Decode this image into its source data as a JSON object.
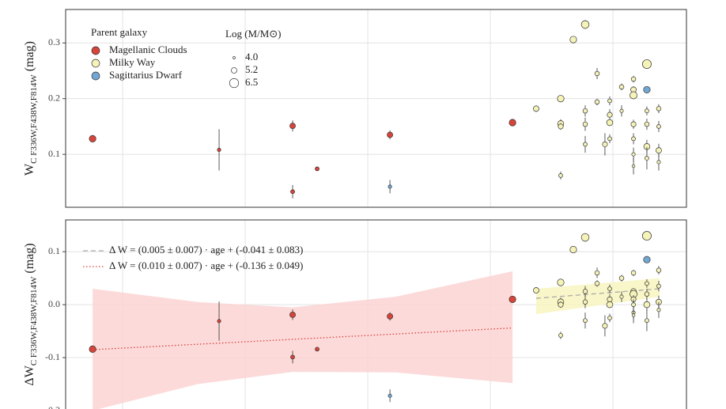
{
  "chart_data": [
    {
      "type": "scatter",
      "ylabel": {
        "main": "W",
        "sub": "C F336W,F438W,F814W",
        "unit": "(mag)"
      },
      "xlim": [
        0.535,
        5.6
      ],
      "xticks": [
        1,
        2,
        3,
        4,
        5
      ],
      "ylim": [
        0.005,
        0.36
      ],
      "yticks": [
        0.1,
        0.2,
        0.3
      ],
      "grid": true,
      "legend_title": "Parent galaxy",
      "size_legend": {
        "title": "Log (M/M⊙)",
        "values": [
          {
            "value": 4,
            "label": "4.0"
          },
          {
            "value": 5.2,
            "label": "5.2"
          },
          {
            "value": 6.5,
            "label": "6.5"
          }
        ]
      },
      "series": [
        {
          "name": "Magellanic Clouds",
          "color": "#d7443a",
          "x": [
            0.755,
            1.787,
            2.387,
            2.387,
            2.587,
            3.181,
            4.181
          ],
          "values": [
            0.128,
            0.108,
            0.151,
            0.033,
            0.074,
            0.135,
            0.157
          ],
          "sizes": [
            5.6,
            4.4,
            5.2,
            4.6,
            4.6,
            5.2,
            5.6
          ],
          "errors": [
            0.006,
            0.037,
            0.01,
            0.012,
            0.003,
            0.008,
            0.005
          ]
        },
        {
          "name": "Milky Way",
          "color": "#f6f3b9",
          "x": [
            4.374,
            4.574,
            4.574,
            4.574,
            4.574,
            4.677,
            4.774,
            4.774,
            4.774,
            4.774,
            4.871,
            4.871,
            4.935,
            4.974,
            4.974,
            4.974,
            4.974,
            5.071,
            5.071,
            5.168,
            5.168,
            5.168,
            5.168,
            5.168,
            5.168,
            5.168,
            5.277,
            5.277,
            5.277,
            5.277,
            5.277,
            5.374,
            5.374,
            5.374,
            5.374
          ],
          "values": [
            0.182,
            0.2,
            0.155,
            0.15,
            0.062,
            0.306,
            0.333,
            0.178,
            0.154,
            0.118,
            0.245,
            0.194,
            0.118,
            0.196,
            0.171,
            0.157,
            0.128,
            0.221,
            0.178,
            0.235,
            0.216,
            0.206,
            0.154,
            0.128,
            0.1,
            0.079,
            0.178,
            0.154,
            0.114,
            0.093,
            0.262,
            0.182,
            0.15,
            0.107,
            0.086
          ],
          "sizes": [
            5.2,
            5.6,
            5.4,
            5.0,
            4.6,
            5.6,
            6.0,
            4.8,
            4.8,
            4.6,
            4.8,
            4.8,
            5.0,
            4.6,
            5.0,
            5.4,
            4.6,
            4.8,
            4.4,
            4.8,
            5.2,
            5.8,
            5.0,
            4.6,
            4.4,
            4.2,
            4.6,
            4.8,
            5.4,
            4.6,
            6.4,
            4.8,
            4.6,
            5.2,
            4.4
          ],
          "errors": [
            0.006,
            0.005,
            0.008,
            0.006,
            0.007,
            0.004,
            0.008,
            0.01,
            0.012,
            0.015,
            0.01,
            0.006,
            0.02,
            0.008,
            0.01,
            0.006,
            0.008,
            0.006,
            0.01,
            0.006,
            0.006,
            0.005,
            0.008,
            0.01,
            0.012,
            0.015,
            0.008,
            0.01,
            0.012,
            0.02,
            0.006,
            0.008,
            0.01,
            0.012,
            0.015
          ]
        },
        {
          "name": "Sagittarius Dwarf",
          "color": "#72a7d3",
          "x": [
            3.181,
            5.277
          ],
          "values": [
            0.042,
            0.216
          ],
          "sizes": [
            4.4,
            5.6
          ],
          "errors": [
            0.012,
            0.005
          ]
        }
      ]
    },
    {
      "type": "scatter",
      "ylabel": {
        "main": "ΔW",
        "sub": "C F336W,F438W,F814W",
        "unit": "(mag)"
      },
      "xlim": [
        0.535,
        5.6
      ],
      "xticks": [
        1,
        2,
        3,
        4,
        5
      ],
      "ylim": [
        -0.2,
        0.16
      ],
      "yticks": [
        -0.2,
        -0.1,
        {
          "value": 0,
          "label": "0.0"
        },
        0.1
      ],
      "grid": true,
      "bands": [
        {
          "color": "#fbd3d3",
          "x": [
            0.755,
            1.613,
            2.387,
            3.226,
            4.181
          ],
          "upper": [
            0.03,
            0.005,
            -0.005,
            0.015,
            0.063
          ],
          "lower": [
            -0.2,
            -0.15,
            -0.127,
            -0.128,
            -0.148
          ]
        },
        {
          "color": "#f8f5c0",
          "x": [
            4.374,
            5.381
          ],
          "upper": [
            0.03,
            0.05
          ],
          "lower": [
            -0.018,
            0.015
          ]
        }
      ],
      "fits": [
        {
          "label": "Δ W = (0.005 ± 0.007) · age + (-0.041 ± 0.083)",
          "color": "#aaaaaa",
          "dash": "6 4",
          "x": [
            4.374,
            5.381
          ],
          "values": [
            0.012,
            0.03
          ]
        },
        {
          "label": "Δ W = (0.010 ± 0.007) · age + (-0.136 ± 0.049)",
          "color": "#d7443a",
          "dash": "1.5 2.5",
          "x": [
            0.755,
            4.181
          ],
          "values": [
            -0.085,
            -0.044
          ]
        }
      ],
      "series": [
        {
          "color": "#d7443a",
          "x": [
            0.755,
            1.787,
            2.387,
            2.387,
            2.587,
            3.181,
            4.181
          ],
          "values": [
            -0.084,
            -0.031,
            -0.019,
            -0.099,
            -0.084,
            -0.022,
            0.01
          ],
          "sizes": [
            5.6,
            4.4,
            5.2,
            4.6,
            4.6,
            5.2,
            5.6
          ],
          "errors": [
            0.006,
            0.037,
            0.01,
            0.012,
            0.003,
            0.008,
            0.005
          ]
        },
        {
          "color": "#f6f3b9",
          "x": [
            4.374,
            4.574,
            4.574,
            4.574,
            4.574,
            4.677,
            4.774,
            4.774,
            4.774,
            4.774,
            4.871,
            4.871,
            4.935,
            4.974,
            4.974,
            4.974,
            4.974,
            5.071,
            5.071,
            5.168,
            5.168,
            5.168,
            5.168,
            5.168,
            5.168,
            5.168,
            5.277,
            5.277,
            5.277,
            5.277,
            5.277,
            5.374,
            5.374,
            5.374,
            5.374
          ],
          "values": [
            0.027,
            0.042,
            0.005,
            0,
            -0.058,
            0.104,
            0.127,
            0.025,
            0.005,
            -0.03,
            0.06,
            0.04,
            -0.04,
            0.03,
            0.01,
            0,
            -0.025,
            0.05,
            0.015,
            0.06,
            0.025,
            0.02,
            0.01,
            0,
            -0.015,
            -0.02,
            0.04,
            0.02,
            0,
            -0.03,
            0.13,
            0.065,
            0.035,
            0.005,
            -0.01
          ],
          "sizes": [
            5.2,
            5.6,
            5.4,
            5.0,
            4.6,
            5.6,
            6.0,
            4.8,
            4.8,
            4.6,
            4.8,
            4.8,
            5.0,
            4.6,
            5.0,
            5.4,
            4.6,
            4.8,
            4.4,
            4.8,
            5.2,
            5.8,
            5.0,
            4.6,
            4.4,
            4.2,
            4.6,
            4.8,
            5.4,
            4.6,
            6.4,
            4.8,
            4.6,
            5.2,
            4.4
          ],
          "errors": [
            0.006,
            0.005,
            0.008,
            0.006,
            0.007,
            0.004,
            0.008,
            0.01,
            0.012,
            0.015,
            0.01,
            0.006,
            0.02,
            0.008,
            0.01,
            0.006,
            0.008,
            0.006,
            0.01,
            0.006,
            0.006,
            0.005,
            0.008,
            0.01,
            0.012,
            0.015,
            0.008,
            0.01,
            0.012,
            0.02,
            0.006,
            0.008,
            0.01,
            0.012,
            0.015
          ]
        },
        {
          "color": "#72a7d3",
          "x": [
            3.181,
            5.277
          ],
          "values": [
            -0.172,
            0.085
          ],
          "sizes": [
            4.4,
            5.6
          ],
          "errors": [
            0.012,
            0.005
          ]
        }
      ]
    }
  ]
}
